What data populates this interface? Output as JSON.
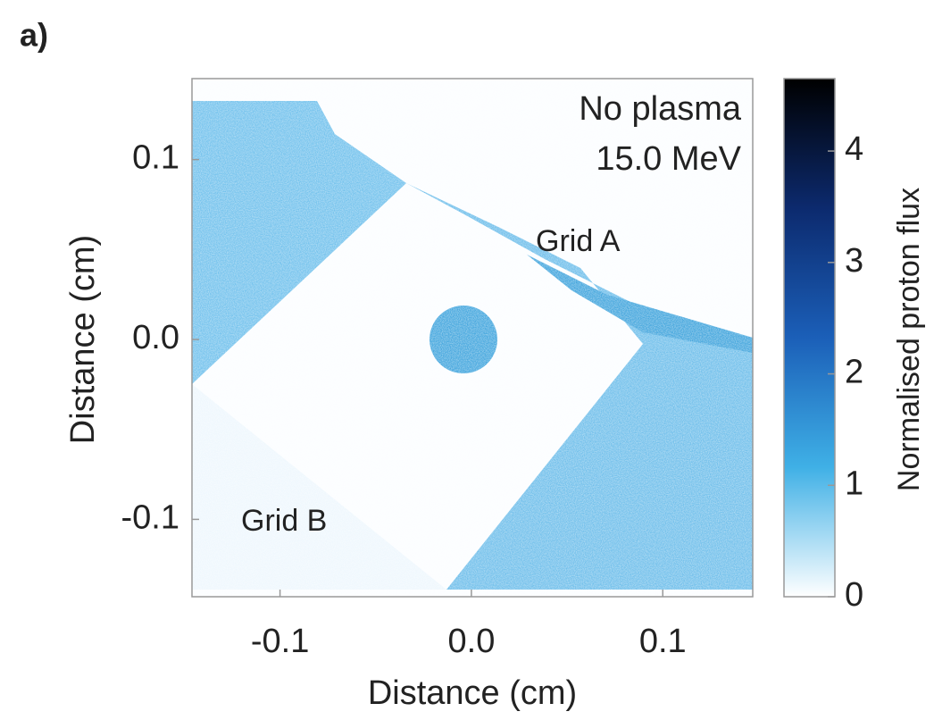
{
  "chart_data": {
    "type": "heatmap",
    "panel_label": "a)",
    "annotations": [
      "No plasma",
      "15.0 MeV",
      "Grid A",
      "Grid B"
    ],
    "xlabel": "Distance (cm)",
    "ylabel": "Distance (cm)",
    "xlim": [
      -0.146,
      0.147
    ],
    "xticks": [
      -0.1,
      {
        "value": 0,
        "label": "0.0"
      },
      0.1
    ],
    "ylim": [
      -0.143,
      0.145
    ],
    "yticks": [
      -0.1,
      {
        "value": 0,
        "label": "0.0"
      },
      0.1
    ],
    "colorbar": {
      "label": "Normalised proton flux",
      "lim": [
        0,
        4.65
      ],
      "ticks": [
        0,
        1,
        2,
        3,
        4
      ],
      "colors": [
        "#ffffff",
        "#3fb0e6",
        "#1b5fb8",
        "#0c2a6e",
        "#000000"
      ]
    }
  }
}
